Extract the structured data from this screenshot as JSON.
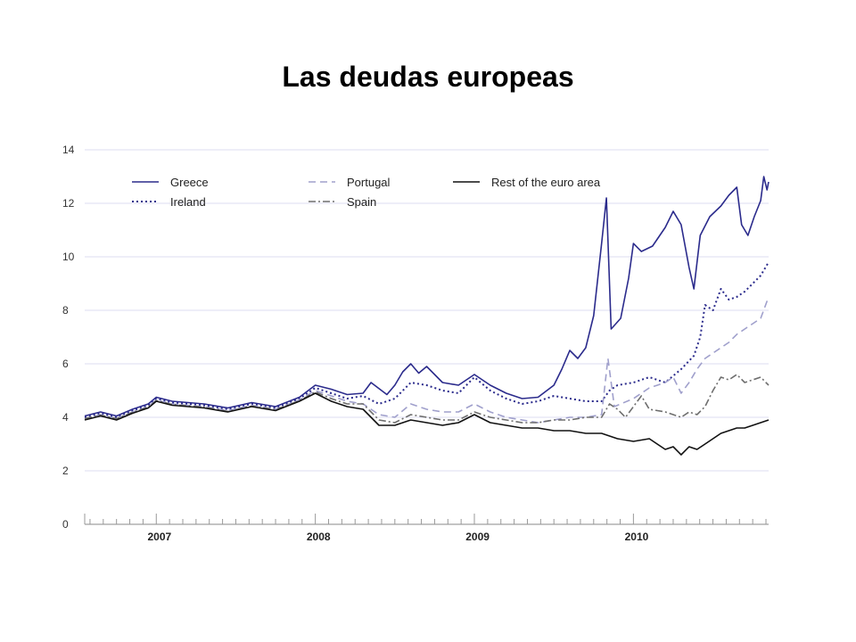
{
  "slide": {
    "title": "Las deudas europeas"
  },
  "chart_data": {
    "type": "line",
    "title": "",
    "xlabel": "",
    "ylabel": "",
    "x_range": [
      2006.55,
      2010.85
    ],
    "ylim": [
      0,
      14
    ],
    "yticks": [
      0,
      2,
      4,
      6,
      8,
      10,
      12,
      14
    ],
    "xtick_labels": [
      {
        "label": "2007",
        "x": 2007.0
      },
      {
        "label": "2008",
        "x": 2008.0
      },
      {
        "label": "2009",
        "x": 2009.0
      },
      {
        "label": "2010",
        "x": 2010.0
      }
    ],
    "grid": true,
    "legend_placement": "top-left",
    "series": [
      {
        "name": "Greece",
        "color": "#2b2b8c",
        "dash": "solid",
        "points": [
          [
            2006.55,
            4.05
          ],
          [
            2006.65,
            4.2
          ],
          [
            2006.75,
            4.05
          ],
          [
            2006.85,
            4.3
          ],
          [
            2006.95,
            4.5
          ],
          [
            2007.0,
            4.75
          ],
          [
            2007.1,
            4.6
          ],
          [
            2007.3,
            4.5
          ],
          [
            2007.45,
            4.35
          ],
          [
            2007.6,
            4.55
          ],
          [
            2007.75,
            4.4
          ],
          [
            2007.9,
            4.75
          ],
          [
            2008.0,
            5.2
          ],
          [
            2008.1,
            5.05
          ],
          [
            2008.2,
            4.85
          ],
          [
            2008.3,
            4.9
          ],
          [
            2008.35,
            5.3
          ],
          [
            2008.45,
            4.85
          ],
          [
            2008.5,
            5.2
          ],
          [
            2008.55,
            5.7
          ],
          [
            2008.6,
            6.0
          ],
          [
            2008.65,
            5.65
          ],
          [
            2008.7,
            5.9
          ],
          [
            2008.75,
            5.6
          ],
          [
            2008.8,
            5.3
          ],
          [
            2008.9,
            5.2
          ],
          [
            2009.0,
            5.6
          ],
          [
            2009.1,
            5.2
          ],
          [
            2009.2,
            4.9
          ],
          [
            2009.3,
            4.7
          ],
          [
            2009.4,
            4.75
          ],
          [
            2009.5,
            5.2
          ],
          [
            2009.55,
            5.8
          ],
          [
            2009.6,
            6.5
          ],
          [
            2009.65,
            6.2
          ],
          [
            2009.7,
            6.6
          ],
          [
            2009.75,
            7.8
          ],
          [
            2009.8,
            10.5
          ],
          [
            2009.83,
            12.2
          ],
          [
            2009.86,
            7.3
          ],
          [
            2009.92,
            7.7
          ],
          [
            2009.97,
            9.2
          ],
          [
            2010.0,
            10.5
          ],
          [
            2010.05,
            10.2
          ],
          [
            2010.12,
            10.4
          ],
          [
            2010.2,
            11.1
          ],
          [
            2010.25,
            11.7
          ],
          [
            2010.3,
            11.2
          ],
          [
            2010.35,
            9.6
          ],
          [
            2010.38,
            8.8
          ],
          [
            2010.42,
            10.8
          ],
          [
            2010.48,
            11.5
          ],
          [
            2010.55,
            11.9
          ],
          [
            2010.6,
            12.3
          ],
          [
            2010.65,
            12.6
          ],
          [
            2010.68,
            11.2
          ],
          [
            2010.72,
            10.8
          ],
          [
            2010.76,
            11.5
          ],
          [
            2010.8,
            12.1
          ],
          [
            2010.82,
            13.0
          ],
          [
            2010.84,
            12.5
          ],
          [
            2010.85,
            12.8
          ]
        ]
      },
      {
        "name": "Ireland",
        "color": "#2b2b8c",
        "dash": "dotted",
        "points": [
          [
            2006.55,
            4.0
          ],
          [
            2006.65,
            4.15
          ],
          [
            2006.75,
            4.0
          ],
          [
            2006.85,
            4.25
          ],
          [
            2006.95,
            4.45
          ],
          [
            2007.0,
            4.7
          ],
          [
            2007.1,
            4.55
          ],
          [
            2007.3,
            4.45
          ],
          [
            2007.45,
            4.3
          ],
          [
            2007.6,
            4.5
          ],
          [
            2007.75,
            4.35
          ],
          [
            2007.9,
            4.7
          ],
          [
            2008.0,
            5.1
          ],
          [
            2008.1,
            4.9
          ],
          [
            2008.2,
            4.7
          ],
          [
            2008.3,
            4.8
          ],
          [
            2008.4,
            4.5
          ],
          [
            2008.5,
            4.7
          ],
          [
            2008.6,
            5.3
          ],
          [
            2008.7,
            5.2
          ],
          [
            2008.8,
            5.0
          ],
          [
            2008.9,
            4.9
          ],
          [
            2009.0,
            5.5
          ],
          [
            2009.1,
            5.0
          ],
          [
            2009.2,
            4.7
          ],
          [
            2009.3,
            4.5
          ],
          [
            2009.4,
            4.6
          ],
          [
            2009.5,
            4.8
          ],
          [
            2009.6,
            4.7
          ],
          [
            2009.7,
            4.6
          ],
          [
            2009.8,
            4.6
          ],
          [
            2009.85,
            5.0
          ],
          [
            2009.9,
            5.2
          ],
          [
            2010.0,
            5.3
          ],
          [
            2010.1,
            5.5
          ],
          [
            2010.2,
            5.3
          ],
          [
            2010.3,
            5.8
          ],
          [
            2010.38,
            6.3
          ],
          [
            2010.42,
            7.0
          ],
          [
            2010.45,
            8.2
          ],
          [
            2010.5,
            8.0
          ],
          [
            2010.55,
            8.8
          ],
          [
            2010.6,
            8.4
          ],
          [
            2010.65,
            8.5
          ],
          [
            2010.7,
            8.7
          ],
          [
            2010.75,
            9.0
          ],
          [
            2010.8,
            9.3
          ],
          [
            2010.85,
            9.8
          ]
        ]
      },
      {
        "name": "Portugal",
        "color": "#a0a0cc",
        "dash": "dashed",
        "points": [
          [
            2006.55,
            3.95
          ],
          [
            2006.65,
            4.1
          ],
          [
            2006.75,
            3.95
          ],
          [
            2006.85,
            4.2
          ],
          [
            2006.95,
            4.4
          ],
          [
            2007.0,
            4.65
          ],
          [
            2007.1,
            4.5
          ],
          [
            2007.3,
            4.4
          ],
          [
            2007.45,
            4.25
          ],
          [
            2007.6,
            4.45
          ],
          [
            2007.75,
            4.3
          ],
          [
            2007.9,
            4.65
          ],
          [
            2008.0,
            5.0
          ],
          [
            2008.1,
            4.8
          ],
          [
            2008.2,
            4.6
          ],
          [
            2008.3,
            4.5
          ],
          [
            2008.4,
            4.1
          ],
          [
            2008.5,
            4.0
          ],
          [
            2008.6,
            4.5
          ],
          [
            2008.7,
            4.3
          ],
          [
            2008.8,
            4.2
          ],
          [
            2008.9,
            4.2
          ],
          [
            2009.0,
            4.5
          ],
          [
            2009.1,
            4.2
          ],
          [
            2009.2,
            4.0
          ],
          [
            2009.3,
            3.9
          ],
          [
            2009.4,
            3.8
          ],
          [
            2009.5,
            3.9
          ],
          [
            2009.6,
            4.0
          ],
          [
            2009.7,
            4.0
          ],
          [
            2009.8,
            4.1
          ],
          [
            2009.84,
            6.2
          ],
          [
            2009.88,
            4.4
          ],
          [
            2010.0,
            4.7
          ],
          [
            2010.1,
            5.1
          ],
          [
            2010.2,
            5.3
          ],
          [
            2010.25,
            5.5
          ],
          [
            2010.3,
            4.9
          ],
          [
            2010.35,
            5.3
          ],
          [
            2010.4,
            5.8
          ],
          [
            2010.45,
            6.2
          ],
          [
            2010.5,
            6.4
          ],
          [
            2010.55,
            6.6
          ],
          [
            2010.6,
            6.8
          ],
          [
            2010.65,
            7.1
          ],
          [
            2010.7,
            7.3
          ],
          [
            2010.75,
            7.5
          ],
          [
            2010.8,
            7.7
          ],
          [
            2010.85,
            8.5
          ]
        ]
      },
      {
        "name": "Spain",
        "color": "#6e6e6e",
        "dash": "dashdot",
        "points": [
          [
            2006.55,
            3.95
          ],
          [
            2006.65,
            4.08
          ],
          [
            2006.75,
            3.95
          ],
          [
            2006.85,
            4.18
          ],
          [
            2006.95,
            4.38
          ],
          [
            2007.0,
            4.62
          ],
          [
            2007.1,
            4.48
          ],
          [
            2007.3,
            4.38
          ],
          [
            2007.45,
            4.22
          ],
          [
            2007.6,
            4.42
          ],
          [
            2007.75,
            4.28
          ],
          [
            2007.9,
            4.62
          ],
          [
            2008.0,
            4.95
          ],
          [
            2008.1,
            4.7
          ],
          [
            2008.2,
            4.5
          ],
          [
            2008.3,
            4.5
          ],
          [
            2008.4,
            3.9
          ],
          [
            2008.5,
            3.8
          ],
          [
            2008.6,
            4.1
          ],
          [
            2008.7,
            4.0
          ],
          [
            2008.8,
            3.9
          ],
          [
            2008.9,
            3.9
          ],
          [
            2009.0,
            4.2
          ],
          [
            2009.1,
            4.0
          ],
          [
            2009.2,
            3.9
          ],
          [
            2009.3,
            3.8
          ],
          [
            2009.4,
            3.8
          ],
          [
            2009.5,
            3.9
          ],
          [
            2009.6,
            3.9
          ],
          [
            2009.7,
            4.0
          ],
          [
            2009.8,
            4.0
          ],
          [
            2009.85,
            4.5
          ],
          [
            2009.9,
            4.3
          ],
          [
            2009.95,
            4.0
          ],
          [
            2010.0,
            4.4
          ],
          [
            2010.05,
            4.8
          ],
          [
            2010.1,
            4.3
          ],
          [
            2010.2,
            4.2
          ],
          [
            2010.3,
            4.0
          ],
          [
            2010.35,
            4.2
          ],
          [
            2010.4,
            4.1
          ],
          [
            2010.45,
            4.4
          ],
          [
            2010.5,
            5.0
          ],
          [
            2010.55,
            5.5
          ],
          [
            2010.6,
            5.4
          ],
          [
            2010.65,
            5.6
          ],
          [
            2010.7,
            5.3
          ],
          [
            2010.75,
            5.4
          ],
          [
            2010.8,
            5.5
          ],
          [
            2010.85,
            5.2
          ]
        ]
      },
      {
        "name": "Rest of the euro area",
        "color": "#111111",
        "dash": "solid",
        "points": [
          [
            2006.55,
            3.9
          ],
          [
            2006.65,
            4.05
          ],
          [
            2006.75,
            3.9
          ],
          [
            2006.85,
            4.15
          ],
          [
            2006.95,
            4.35
          ],
          [
            2007.0,
            4.6
          ],
          [
            2007.1,
            4.45
          ],
          [
            2007.3,
            4.35
          ],
          [
            2007.45,
            4.2
          ],
          [
            2007.6,
            4.4
          ],
          [
            2007.75,
            4.25
          ],
          [
            2007.9,
            4.6
          ],
          [
            2008.0,
            4.9
          ],
          [
            2008.1,
            4.6
          ],
          [
            2008.2,
            4.4
          ],
          [
            2008.3,
            4.3
          ],
          [
            2008.4,
            3.7
          ],
          [
            2008.5,
            3.7
          ],
          [
            2008.6,
            3.9
          ],
          [
            2008.7,
            3.8
          ],
          [
            2008.8,
            3.7
          ],
          [
            2008.9,
            3.8
          ],
          [
            2009.0,
            4.1
          ],
          [
            2009.1,
            3.8
          ],
          [
            2009.2,
            3.7
          ],
          [
            2009.3,
            3.6
          ],
          [
            2009.4,
            3.6
          ],
          [
            2009.5,
            3.5
          ],
          [
            2009.6,
            3.5
          ],
          [
            2009.7,
            3.4
          ],
          [
            2009.8,
            3.4
          ],
          [
            2009.9,
            3.2
          ],
          [
            2010.0,
            3.1
          ],
          [
            2010.1,
            3.2
          ],
          [
            2010.15,
            3.0
          ],
          [
            2010.2,
            2.8
          ],
          [
            2010.25,
            2.9
          ],
          [
            2010.3,
            2.6
          ],
          [
            2010.35,
            2.9
          ],
          [
            2010.4,
            2.8
          ],
          [
            2010.45,
            3.0
          ],
          [
            2010.5,
            3.2
          ],
          [
            2010.55,
            3.4
          ],
          [
            2010.6,
            3.5
          ],
          [
            2010.65,
            3.6
          ],
          [
            2010.7,
            3.6
          ],
          [
            2010.75,
            3.7
          ],
          [
            2010.8,
            3.8
          ],
          [
            2010.85,
            3.9
          ]
        ]
      }
    ]
  }
}
